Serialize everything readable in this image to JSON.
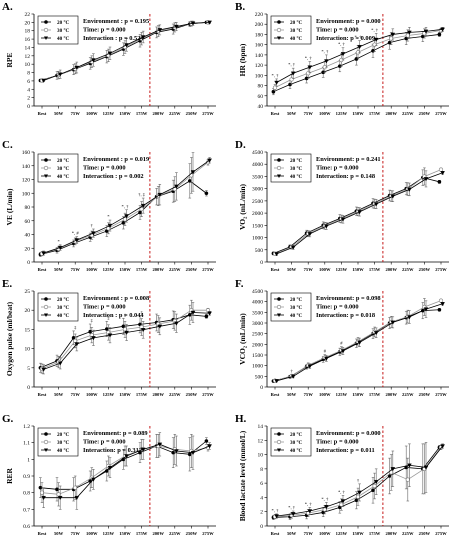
{
  "figure": {
    "categories": [
      "Rest",
      "50W",
      "75W",
      "100W",
      "125W",
      "150W",
      "175W",
      "200W",
      "225W",
      "250W",
      "275W"
    ],
    "legend_labels": [
      "20 °C",
      "30 °C",
      "40 °C"
    ],
    "marker_styles": [
      "filled-circle",
      "open-circle",
      "filled-triangle"
    ],
    "series_colors": [
      "#000000",
      "#999999",
      "#000000"
    ],
    "reference_line_color": "#c00000"
  },
  "chart_data": [
    {
      "panel": "A.",
      "type": "line",
      "ylabel": "RPE",
      "ylim": [
        0,
        22
      ],
      "yticks": [
        0,
        2,
        4,
        6,
        8,
        10,
        12,
        14,
        16,
        18,
        20,
        22
      ],
      "stats": [
        "Environment : p = 0.195",
        "Time: p = 0.000",
        "Interaction : p = 0.524"
      ],
      "annotations": [],
      "series": [
        {
          "name": "20 °C",
          "values": [
            6.1,
            7.3,
            8.7,
            10.2,
            11.8,
            13.6,
            15.6,
            17.6,
            18.4,
            19.6,
            20
          ],
          "errors": [
            0.3,
            0.9,
            1.2,
            1.4,
            1.5,
            1.5,
            1.5,
            1.3,
            1.2,
            0.6,
            0.2
          ]
        },
        {
          "name": "30 °C",
          "values": [
            6.1,
            7.4,
            8.9,
            10.6,
            12.1,
            14.1,
            16.1,
            17.9,
            18.8,
            19.7,
            20
          ],
          "errors": [
            0.3,
            0.9,
            1.2,
            1.4,
            1.5,
            1.5,
            1.5,
            1.3,
            1.1,
            0.6,
            0.2
          ]
        },
        {
          "name": "40 °C",
          "values": [
            6.1,
            7.6,
            9.2,
            11.0,
            12.6,
            14.6,
            16.5,
            18.2,
            19.0,
            19.8,
            20
          ],
          "errors": [
            0.3,
            1.0,
            1.3,
            1.5,
            1.5,
            1.5,
            1.4,
            1.2,
            1.0,
            0.5,
            0.2
          ]
        }
      ]
    },
    {
      "panel": "B.",
      "type": "line",
      "ylabel": "HR (bpm)",
      "ylim": [
        40,
        220
      ],
      "yticks": [
        40,
        60,
        80,
        100,
        120,
        140,
        160,
        180,
        200,
        220
      ],
      "stats": [
        "Environment: p = 0.000",
        "Time: p = 0.000",
        "Interaction: p = 0.009"
      ],
      "annotations": [
        {
          "index": 0,
          "label": "*, †"
        },
        {
          "index": 1,
          "label": "*, †"
        },
        {
          "index": 2,
          "label": "*, †"
        },
        {
          "index": 3,
          "label": "*, †"
        },
        {
          "index": 4,
          "label": "*, †"
        },
        {
          "index": 5,
          "label": "*, †"
        },
        {
          "index": 6,
          "label": "*, †"
        }
      ],
      "series": [
        {
          "name": "20 °C",
          "values": [
            68,
            82,
            94,
            106,
            118,
            132,
            148,
            164,
            172,
            176,
            180
          ],
          "errors": [
            6,
            8,
            9,
            10,
            11,
            12,
            13,
            13,
            12,
            10,
            4
          ]
        },
        {
          "name": "30 °C",
          "values": [
            76,
            92,
            104,
            116,
            130,
            145,
            160,
            172,
            178,
            182,
            188
          ],
          "errors": [
            6,
            9,
            10,
            11,
            12,
            13,
            13,
            12,
            11,
            9,
            4
          ]
        },
        {
          "name": "40 °C",
          "values": [
            86,
            104,
            116,
            128,
            142,
            156,
            170,
            180,
            184,
            186,
            190
          ],
          "errors": [
            7,
            10,
            11,
            12,
            12,
            12,
            12,
            11,
            10,
            8,
            4
          ]
        }
      ]
    },
    {
      "panel": "C.",
      "type": "line",
      "ylabel": "VE (L/min)",
      "ylim": [
        0,
        160
      ],
      "yticks": [
        0,
        20,
        40,
        60,
        80,
        100,
        120,
        140,
        160
      ],
      "stats": [
        "Environment : p = 0.019",
        "Time: p = 0.000",
        "Interaction : p = 0.002"
      ],
      "annotations": [
        {
          "index": 1,
          "label": "*"
        },
        {
          "index": 2,
          "label": "*, #"
        },
        {
          "index": 3,
          "label": "†"
        },
        {
          "index": 4,
          "label": "*"
        },
        {
          "index": 5,
          "label": "*, †"
        },
        {
          "index": 6,
          "label": "†, ‡"
        }
      ],
      "series": [
        {
          "name": "20 °C",
          "values": [
            11,
            17,
            27,
            36,
            45,
            57,
            72,
            95,
            103,
            118,
            100
          ],
          "errors": [
            3,
            4,
            5,
            6,
            8,
            9,
            10,
            12,
            16,
            25,
            4
          ]
        },
        {
          "name": "30 °C",
          "values": [
            12,
            19,
            30,
            39,
            49,
            62,
            77,
            96,
            106,
            126,
            145
          ],
          "errors": [
            3,
            4,
            5,
            6,
            8,
            9,
            11,
            14,
            18,
            26,
            4
          ]
        },
        {
          "name": "40 °C",
          "values": [
            13,
            21,
            32,
            42,
            53,
            67,
            82,
            98,
            110,
            131,
            148
          ],
          "errors": [
            3,
            4,
            5,
            6,
            8,
            9,
            11,
            15,
            20,
            28,
            4
          ]
        }
      ]
    },
    {
      "panel": "D.",
      "type": "line",
      "ylabel": "VO₂ (mL/min)",
      "ylim": [
        0,
        4500
      ],
      "yticks": [
        0,
        500,
        1000,
        1500,
        2000,
        2500,
        3000,
        3500,
        4000,
        4500
      ],
      "stats": [
        "Environment: p = 0.241",
        "Time: p = 0.000",
        "Interaction: p = 0.148"
      ],
      "annotations": [],
      "series": [
        {
          "name": "20 °C",
          "values": [
            350,
            620,
            1180,
            1500,
            1780,
            2080,
            2400,
            2720,
            3000,
            3450,
            3280
          ],
          "errors": [
            60,
            80,
            120,
            140,
            160,
            170,
            190,
            220,
            250,
            320,
            60
          ]
        },
        {
          "name": "30 °C",
          "values": [
            340,
            610,
            1160,
            1480,
            1760,
            2060,
            2380,
            2700,
            2980,
            3500,
            3780
          ],
          "errors": [
            60,
            80,
            120,
            140,
            160,
            170,
            190,
            220,
            260,
            350,
            60
          ]
        },
        {
          "name": "40 °C",
          "values": [
            330,
            600,
            1150,
            1470,
            1750,
            2050,
            2370,
            2690,
            2970,
            3400,
            3650
          ],
          "errors": [
            60,
            80,
            120,
            140,
            160,
            170,
            190,
            220,
            260,
            330,
            60
          ]
        }
      ]
    },
    {
      "panel": "E.",
      "type": "line",
      "ylabel": "Oxygen pulse (ml/beat)",
      "ylim": [
        0,
        25
      ],
      "yticks": [
        0,
        5,
        10,
        15,
        20,
        25
      ],
      "stats": [
        "Environment : p = 0.008",
        "Time: p = 0.000",
        "Interaction : p = 0.044"
      ],
      "annotations": [
        {
          "index": 2,
          "label": "‡"
        },
        {
          "index": 3,
          "label": "‡"
        },
        {
          "index": 4,
          "label": "‡"
        },
        {
          "index": 5,
          "label": "‡"
        },
        {
          "index": 6,
          "label": "‡"
        }
      ],
      "series": [
        {
          "name": "20 °C",
          "values": [
            5.0,
            6.8,
            12.8,
            14.4,
            15.1,
            15.8,
            16.3,
            16.8,
            17.5,
            18.8,
            18.4
          ],
          "errors": [
            1.2,
            1.5,
            1.8,
            2.0,
            2.0,
            2.1,
            2.2,
            2.2,
            2.3,
            2.5,
            0.5
          ]
        },
        {
          "name": "30 °C",
          "values": [
            4.8,
            6.5,
            12.0,
            13.5,
            14.2,
            15.0,
            15.6,
            16.4,
            17.2,
            20.0,
            20.0
          ],
          "errors": [
            1.2,
            1.5,
            1.8,
            2.0,
            2.0,
            2.1,
            2.2,
            2.2,
            2.4,
            2.6,
            0.5
          ]
        },
        {
          "name": "40 °C",
          "values": [
            4.6,
            6.2,
            11.2,
            12.8,
            13.5,
            14.2,
            14.9,
            15.8,
            16.6,
            19.4,
            19.2
          ],
          "errors": [
            1.2,
            1.5,
            1.8,
            2.0,
            2.0,
            2.1,
            2.2,
            2.2,
            2.4,
            2.6,
            0.5
          ]
        }
      ]
    },
    {
      "panel": "F.",
      "type": "line",
      "ylabel": "VCO₂ (mL/min)",
      "ylim": [
        0,
        4500
      ],
      "yticks": [
        0,
        500,
        1000,
        1500,
        2000,
        2500,
        3000,
        3500,
        4000,
        4500
      ],
      "stats": [
        "Environment: p = 0.098",
        "Time: p = 0.000",
        "Interaction: p = 0.018"
      ],
      "annotations": [
        {
          "index": 1,
          "label": "†"
        },
        {
          "index": 3,
          "label": "#"
        },
        {
          "index": 4,
          "label": "#"
        }
      ],
      "series": [
        {
          "name": "20 °C",
          "values": [
            280,
            480,
            950,
            1300,
            1650,
            2050,
            2500,
            3000,
            3250,
            3580,
            3620
          ],
          "errors": [
            50,
            70,
            110,
            140,
            170,
            200,
            230,
            260,
            300,
            380,
            60
          ]
        },
        {
          "name": "30 °C",
          "values": [
            300,
            520,
            1020,
            1380,
            1720,
            2120,
            2580,
            3050,
            3300,
            3750,
            4050
          ],
          "errors": [
            50,
            70,
            110,
            140,
            170,
            200,
            230,
            260,
            300,
            400,
            60
          ]
        },
        {
          "name": "40 °C",
          "values": [
            290,
            500,
            980,
            1340,
            1690,
            2090,
            2540,
            3030,
            3280,
            3650,
            3900
          ],
          "errors": [
            50,
            70,
            110,
            140,
            170,
            200,
            230,
            260,
            300,
            390,
            60
          ]
        }
      ]
    },
    {
      "panel": "G.",
      "type": "line",
      "ylabel": "RER",
      "ylim": [
        0.6,
        1.2
      ],
      "yticks": [
        0.6,
        0.7,
        0.8,
        0.9,
        1.0,
        1.1,
        1.2
      ],
      "stats": [
        "Environment: p = 0.089",
        "Time: p = 0.000",
        "Interaction: p = 0.312"
      ],
      "annotations": [],
      "series": [
        {
          "name": "20 °C",
          "values": [
            0.83,
            0.82,
            0.82,
            0.87,
            0.93,
            1.0,
            1.04,
            1.08,
            1.04,
            1.03,
            1.11
          ],
          "errors": [
            0.06,
            0.07,
            0.07,
            0.06,
            0.06,
            0.06,
            0.06,
            0.07,
            0.09,
            0.1,
            0.02
          ]
        },
        {
          "name": "30 °C",
          "values": [
            0.8,
            0.79,
            0.83,
            0.89,
            0.96,
            1.02,
            1.06,
            1.08,
            1.06,
            1.05,
            1.07
          ],
          "errors": [
            0.06,
            0.07,
            0.07,
            0.06,
            0.06,
            0.06,
            0.06,
            0.07,
            0.09,
            0.1,
            0.02
          ]
        },
        {
          "name": "40 °C",
          "values": [
            0.77,
            0.77,
            0.77,
            0.88,
            0.95,
            1.02,
            1.06,
            1.09,
            1.05,
            1.04,
            1.08
          ],
          "errors": [
            0.06,
            0.07,
            0.07,
            0.06,
            0.06,
            0.06,
            0.06,
            0.07,
            0.09,
            0.1,
            0.02
          ]
        }
      ]
    },
    {
      "panel": "H.",
      "type": "line",
      "ylabel": "Blood lactate level (mmol/L)",
      "ylim": [
        0,
        14
      ],
      "yticks": [
        0,
        2,
        4,
        6,
        8,
        10,
        12,
        14
      ],
      "stats": [
        "Environment: p = 0.000",
        "Time: p = 0.000",
        "Interaction: p = 0.011"
      ],
      "annotations": [
        {
          "index": 0,
          "label": "*, †"
        },
        {
          "index": 1,
          "label": "*, †"
        },
        {
          "index": 2,
          "label": "*, †"
        },
        {
          "index": 3,
          "label": "*, †"
        },
        {
          "index": 4,
          "label": "*, †"
        },
        {
          "index": 5,
          "label": "†"
        }
      ],
      "series": [
        {
          "name": "20 °C",
          "values": [
            1.2,
            1.3,
            1.5,
            1.9,
            2.6,
            3.6,
            5.0,
            7.0,
            8.2,
            8.0,
            11.0
          ],
          "errors": [
            0.3,
            0.4,
            0.5,
            0.6,
            0.8,
            1.2,
            1.8,
            2.5,
            3.0,
            3.5,
            0.3
          ]
        },
        {
          "name": "30 °C",
          "values": [
            1.3,
            1.5,
            1.8,
            2.3,
            3.0,
            4.1,
            5.6,
            7.5,
            6.5,
            8.0,
            11.0
          ],
          "errors": [
            0.3,
            0.4,
            0.5,
            0.6,
            0.8,
            1.2,
            1.8,
            2.5,
            3.0,
            3.5,
            0.3
          ]
        },
        {
          "name": "40 °C",
          "values": [
            1.4,
            1.7,
            2.1,
            2.7,
            3.5,
            4.7,
            6.2,
            8.0,
            8.5,
            8.2,
            11.2
          ],
          "errors": [
            0.3,
            0.4,
            0.5,
            0.6,
            0.8,
            1.2,
            1.8,
            2.5,
            3.0,
            3.5,
            0.3
          ]
        }
      ]
    }
  ]
}
